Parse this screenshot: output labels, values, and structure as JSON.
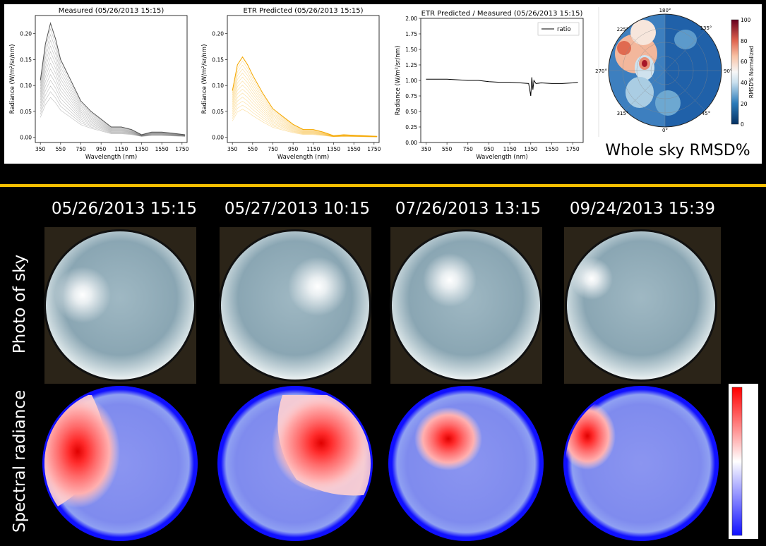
{
  "chart_data": [
    {
      "type": "line",
      "title": "Measured (05/26/2013 15:15)",
      "xlabel": "Wavelength (nm)",
      "ylabel": "Radiance (W/m²/sr/nm)",
      "xlim": [
        300,
        1800
      ],
      "ylim": [
        -0.01,
        0.235
      ],
      "x_ticks": [
        350,
        550,
        750,
        950,
        1150,
        1350,
        1550,
        1750
      ],
      "y_ticks": [
        0.0,
        0.05,
        0.1,
        0.15,
        0.2
      ],
      "y_tick_labels": [
        "0.00",
        "0.05",
        "0.10",
        "0.15",
        "0.20"
      ],
      "series_color": "#555555",
      "series": [
        {
          "x": [
            350,
            400,
            450,
            500,
            550,
            650,
            750,
            850,
            950,
            1050,
            1150,
            1250,
            1350,
            1450,
            1550,
            1650,
            1780
          ],
          "values": [
            0.11,
            0.18,
            0.22,
            0.19,
            0.15,
            0.11,
            0.07,
            0.05,
            0.035,
            0.02,
            0.02,
            0.015,
            0.005,
            0.01,
            0.01,
            0.008,
            0.005
          ]
        }
      ]
    },
    {
      "type": "line",
      "title": "ETR Predicted (05/26/2013 15:15)",
      "xlabel": "Wavelength (nm)",
      "ylabel": "Radiance (W/m²/sr/nm)",
      "xlim": [
        300,
        1800
      ],
      "ylim": [
        -0.01,
        0.235
      ],
      "x_ticks": [
        350,
        550,
        750,
        950,
        1150,
        1350,
        1550,
        1750
      ],
      "y_ticks": [
        0.0,
        0.05,
        0.1,
        0.15,
        0.2
      ],
      "y_tick_labels": [
        "0.00",
        "0.05",
        "0.10",
        "0.15",
        "0.20"
      ],
      "series_color": "#f5a800",
      "series": [
        {
          "x": [
            350,
            400,
            450,
            500,
            550,
            650,
            750,
            850,
            950,
            1050,
            1150,
            1250,
            1350,
            1450,
            1550,
            1650,
            1780
          ],
          "values": [
            0.09,
            0.14,
            0.155,
            0.14,
            0.12,
            0.085,
            0.055,
            0.04,
            0.025,
            0.015,
            0.015,
            0.01,
            0.003,
            0.005,
            0.004,
            0.003,
            0.002
          ]
        }
      ]
    },
    {
      "type": "line",
      "title": "ETR Predicted / Measured (05/26/2013 15:15)",
      "xlabel": "Wavelength (nm)",
      "ylabel": "Radiance (W/m²/sr/nm)",
      "xlim": [
        300,
        1850
      ],
      "ylim": [
        0.0,
        2.0
      ],
      "x_ticks": [
        350,
        550,
        750,
        950,
        1150,
        1350,
        1550,
        1750
      ],
      "y_ticks": [
        0.0,
        0.25,
        0.5,
        0.75,
        1.0,
        1.25,
        1.5,
        1.75,
        2.0
      ],
      "y_tick_labels": [
        "0.00",
        "0.25",
        "0.50",
        "0.75",
        "1.00",
        "1.25",
        "1.50",
        "1.75",
        "2.00"
      ],
      "legend": "top-right",
      "series": [
        {
          "name": "ratio",
          "color": "#000000",
          "x": [
            350,
            450,
            550,
            650,
            750,
            850,
            950,
            1050,
            1150,
            1250,
            1330,
            1350,
            1360,
            1370,
            1380,
            1400,
            1450,
            1550,
            1650,
            1750,
            1800
          ],
          "values": [
            1.02,
            1.02,
            1.02,
            1.01,
            1.0,
            1.0,
            0.98,
            0.97,
            0.97,
            0.96,
            0.95,
            0.75,
            1.05,
            0.85,
            1.0,
            0.95,
            0.96,
            0.95,
            0.95,
            0.96,
            0.97
          ]
        }
      ]
    }
  ],
  "polar": {
    "angle_labels": [
      "180°",
      "135°",
      "90°",
      "45°",
      "0°",
      "315°",
      "270°",
      "225°"
    ],
    "colorbar_title": "RMSD% Normalized",
    "colorbar_ticks": [
      "100",
      "80",
      "60",
      "40",
      "20",
      "0"
    ],
    "caption": "Whole sky RMSD%"
  },
  "timestamps": [
    "05/26/2013 15:15",
    "05/27/2013 10:15",
    "07/26/2013 13:15",
    "09/24/2013 15:39"
  ],
  "row_labels": {
    "photo": "Photo of sky",
    "radiance": "Spectral radiance"
  },
  "radiance_colors": {
    "low": "#1010ff",
    "mid": "#ffffff",
    "high": "#ff0000"
  }
}
